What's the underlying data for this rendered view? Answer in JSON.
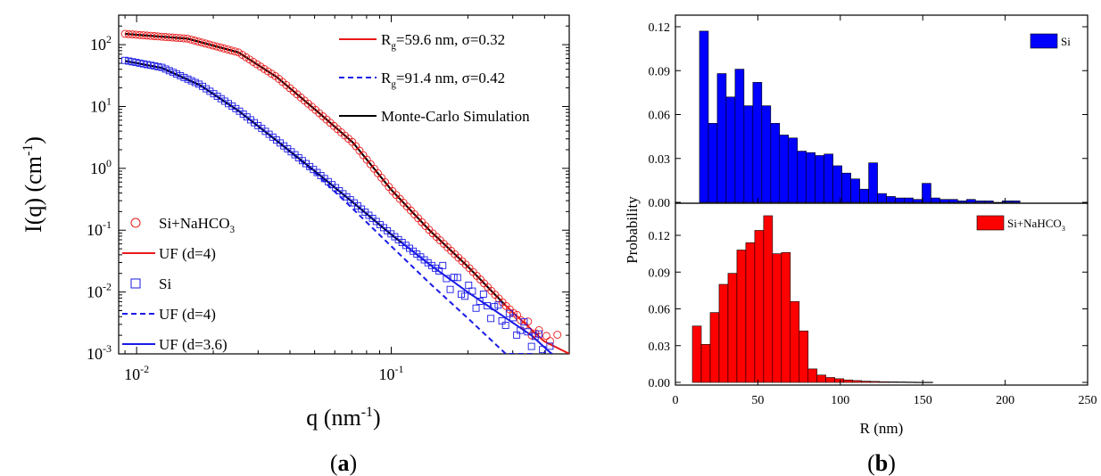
{
  "figure": {
    "panel_a_label": "a",
    "panel_b_label": "b"
  },
  "chart_data": [
    {
      "type": "scatter",
      "panel": "a",
      "xlabel": "q (nm",
      "xlabel_sup": "-1",
      "xlabel_end": ")",
      "ylabel": "I(q) (cm",
      "ylabel_sup": "-1",
      "ylabel_end": ")",
      "xscale": "log",
      "yscale": "log",
      "xlim": [
        0.0085,
        0.5
      ],
      "ylim": [
        0.001,
        300
      ],
      "x_ticks": [
        {
          "value": 0.01,
          "base": "10",
          "exp": "-2"
        },
        {
          "value": 0.1,
          "base": "10",
          "exp": "-1"
        }
      ],
      "y_ticks": [
        {
          "value": 0.001,
          "base": "10",
          "exp": "-3"
        },
        {
          "value": 0.01,
          "base": "10",
          "exp": "-2"
        },
        {
          "value": 0.1,
          "base": "10",
          "exp": "-1"
        },
        {
          "value": 1,
          "base": "10",
          "exp": "0"
        },
        {
          "value": 10,
          "base": "10",
          "exp": "1"
        },
        {
          "value": 100,
          "base": "10",
          "exp": "2"
        }
      ],
      "fits": [
        {
          "name": "Si+NaHCO3",
          "I0": 150,
          "Rg": 59.6,
          "d": 4
        },
        {
          "name": "Si",
          "I0": 60,
          "Rg": 91.4,
          "d": 3.6
        }
      ],
      "legend_top": [
        {
          "pre": "R",
          "sub": "g",
          "post": "=59.6 nm, σ=0.32",
          "color": "#e8191a",
          "dash": false
        },
        {
          "pre": "R",
          "sub": "g",
          "post": "=91.4 nm, σ=0.42",
          "color": "#1a1ae6",
          "dash": true
        },
        {
          "pre": "Monte-Carlo Simulation",
          "sub": "",
          "post": "",
          "color": "#000000",
          "dash": false
        }
      ],
      "legend_bottom": [
        {
          "kind": "circle",
          "pre": "Si+NaHCO",
          "sub": "3",
          "post": "",
          "color": "#e8191a"
        },
        {
          "kind": "line",
          "pre": "UF (d=4)",
          "sub": "",
          "post": "",
          "color": "#e8191a",
          "dash": false
        },
        {
          "kind": "square",
          "pre": "Si",
          "sub": "",
          "post": "",
          "color": "#1a1ae6"
        },
        {
          "kind": "line",
          "pre": "UF (d=4)",
          "sub": "",
          "post": "",
          "color": "#1a1ae6",
          "dash": true
        },
        {
          "kind": "line",
          "pre": "UF (d=3.6)",
          "sub": "",
          "post": "",
          "color": "#1a1ae6",
          "dash": false
        }
      ]
    },
    {
      "type": "bar",
      "panel": "b-top",
      "legend": "Si",
      "color": "#0000ff",
      "xlim": [
        0,
        250
      ],
      "ylim": [
        0,
        0.12
      ],
      "y_ticks": [
        "0.00",
        "0.03",
        "0.06",
        "0.09",
        "0.12"
      ],
      "x": [
        17.3,
        22.7,
        28.1,
        33.5,
        38.9,
        44.3,
        49.7,
        55.1,
        60.5,
        65.9,
        71.3,
        76.7,
        82.1,
        87.5,
        92.9,
        98.3,
        103.7,
        109.1,
        114.5,
        119.9,
        125.3,
        130.7,
        136.1,
        141.5,
        146.9,
        152.3,
        157.7,
        163.1,
        168.5,
        173.9,
        179.3,
        184.7,
        190.1,
        195.5,
        200.9,
        206.3
      ],
      "values": [
        0.117,
        0.054,
        0.088,
        0.072,
        0.091,
        0.066,
        0.082,
        0.066,
        0.054,
        0.046,
        0.044,
        0.035,
        0.034,
        0.032,
        0.033,
        0.025,
        0.02,
        0.016,
        0.009,
        0.027,
        0.006,
        0.004,
        0.003,
        0.003,
        0.002,
        0.013,
        0.003,
        0.002,
        0.002,
        0.001,
        0.002,
        0.001,
        0.001,
        0.0,
        0.001,
        0.001
      ]
    },
    {
      "type": "bar",
      "panel": "b-bottom",
      "legend_pre": "Si+NaHCO",
      "legend_sub": "3",
      "color": "#ff0000",
      "xlabel": "R (nm)",
      "ylabel": "Probability",
      "xlim": [
        0,
        250
      ],
      "ylim": [
        0,
        0.15
      ],
      "x_ticks": [
        "0",
        "50",
        "100",
        "150",
        "200",
        "250"
      ],
      "y_ticks": [
        "0.00",
        "0.03",
        "0.06",
        "0.09",
        "0.12"
      ],
      "x": [
        13.0,
        18.4,
        23.8,
        29.2,
        34.6,
        40.0,
        45.4,
        50.8,
        56.2,
        61.6,
        67.0,
        72.4,
        77.8,
        83.2,
        88.6,
        94.0,
        99.4,
        104.8,
        110.2,
        115.6,
        121.0,
        126.4,
        131.8,
        137.2,
        142.6,
        148.0,
        153.4
      ],
      "values": [
        0.046,
        0.031,
        0.057,
        0.08,
        0.089,
        0.108,
        0.114,
        0.124,
        0.136,
        0.105,
        0.106,
        0.066,
        0.042,
        0.011,
        0.006,
        0.004,
        0.003,
        0.002,
        0.0015,
        0.001,
        0.0008,
        0.0006,
        0.0005,
        0.0004,
        0.0003,
        0.0002,
        0.0002
      ]
    }
  ]
}
